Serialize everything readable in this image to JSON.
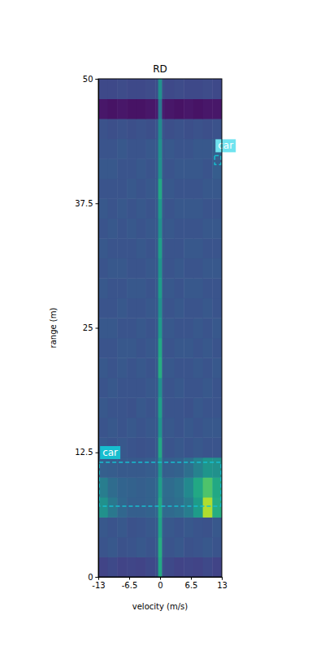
{
  "chart_data": {
    "type": "heatmap",
    "title": "RD",
    "x_label": "velocity (m/s)",
    "y_label": "range (m)",
    "xlim": [
      -13,
      13
    ],
    "ylim": [
      0,
      50
    ],
    "xticks": [
      -13,
      -6.5,
      0,
      6.5,
      13
    ],
    "yticks": [
      0,
      12.5,
      25,
      37.5,
      50
    ],
    "zlim": [
      0,
      1
    ],
    "x_bins": [
      -13,
      -11,
      -9,
      -7,
      -5,
      -3,
      -1,
      -0.4,
      0.4,
      1,
      3,
      5,
      7,
      9,
      11,
      13
    ],
    "y_bins": [
      0,
      2,
      4,
      6,
      8,
      10,
      12,
      14,
      16,
      18,
      20,
      22,
      24,
      26,
      28,
      30,
      32,
      34,
      36,
      38,
      40,
      42,
      44,
      46,
      48,
      50
    ],
    "z": [
      [
        0.2,
        0.22,
        0.2,
        0.21,
        0.2,
        0.22,
        0.24,
        0.6,
        0.24,
        0.22,
        0.2,
        0.21,
        0.2,
        0.22,
        0.2
      ],
      [
        0.26,
        0.27,
        0.25,
        0.26,
        0.27,
        0.26,
        0.28,
        0.62,
        0.28,
        0.26,
        0.27,
        0.25,
        0.26,
        0.27,
        0.26
      ],
      [
        0.27,
        0.26,
        0.27,
        0.25,
        0.26,
        0.27,
        0.28,
        0.58,
        0.29,
        0.27,
        0.26,
        0.27,
        0.26,
        0.25,
        0.27
      ],
      [
        0.5,
        0.4,
        0.33,
        0.3,
        0.3,
        0.31,
        0.33,
        0.6,
        0.35,
        0.34,
        0.36,
        0.42,
        0.55,
        0.88,
        0.62
      ],
      [
        0.42,
        0.35,
        0.32,
        0.31,
        0.3,
        0.31,
        0.33,
        0.56,
        0.36,
        0.35,
        0.38,
        0.47,
        0.6,
        0.72,
        0.6
      ],
      [
        0.3,
        0.29,
        0.28,
        0.28,
        0.28,
        0.29,
        0.3,
        0.52,
        0.3,
        0.3,
        0.31,
        0.36,
        0.44,
        0.52,
        0.5
      ],
      [
        0.27,
        0.26,
        0.27,
        0.26,
        0.25,
        0.26,
        0.28,
        0.6,
        0.28,
        0.26,
        0.27,
        0.26,
        0.27,
        0.26,
        0.26
      ],
      [
        0.26,
        0.27,
        0.26,
        0.27,
        0.26,
        0.27,
        0.27,
        0.52,
        0.27,
        0.27,
        0.26,
        0.27,
        0.26,
        0.27,
        0.27
      ],
      [
        0.27,
        0.26,
        0.26,
        0.25,
        0.27,
        0.26,
        0.28,
        0.56,
        0.28,
        0.26,
        0.26,
        0.25,
        0.27,
        0.26,
        0.26
      ],
      [
        0.26,
        0.27,
        0.26,
        0.26,
        0.26,
        0.27,
        0.27,
        0.5,
        0.27,
        0.26,
        0.27,
        0.26,
        0.26,
        0.27,
        0.26
      ],
      [
        0.27,
        0.26,
        0.27,
        0.26,
        0.27,
        0.26,
        0.28,
        0.62,
        0.28,
        0.27,
        0.26,
        0.26,
        0.27,
        0.26,
        0.27
      ],
      [
        0.26,
        0.26,
        0.27,
        0.27,
        0.26,
        0.27,
        0.28,
        0.6,
        0.27,
        0.26,
        0.27,
        0.27,
        0.26,
        0.27,
        0.26
      ],
      [
        0.27,
        0.27,
        0.26,
        0.26,
        0.27,
        0.26,
        0.27,
        0.54,
        0.28,
        0.27,
        0.26,
        0.26,
        0.27,
        0.26,
        0.27
      ],
      [
        0.26,
        0.26,
        0.27,
        0.26,
        0.26,
        0.27,
        0.27,
        0.5,
        0.27,
        0.26,
        0.27,
        0.26,
        0.26,
        0.27,
        0.26
      ],
      [
        0.27,
        0.26,
        0.26,
        0.27,
        0.27,
        0.26,
        0.28,
        0.55,
        0.28,
        0.27,
        0.26,
        0.27,
        0.27,
        0.26,
        0.26
      ],
      [
        0.26,
        0.27,
        0.27,
        0.26,
        0.26,
        0.27,
        0.27,
        0.52,
        0.27,
        0.26,
        0.27,
        0.26,
        0.26,
        0.27,
        0.27
      ],
      [
        0.27,
        0.26,
        0.26,
        0.26,
        0.27,
        0.26,
        0.28,
        0.56,
        0.28,
        0.26,
        0.26,
        0.27,
        0.27,
        0.26,
        0.26
      ],
      [
        0.26,
        0.27,
        0.26,
        0.27,
        0.26,
        0.27,
        0.27,
        0.5,
        0.27,
        0.27,
        0.26,
        0.26,
        0.26,
        0.27,
        0.27
      ],
      [
        0.27,
        0.26,
        0.27,
        0.26,
        0.27,
        0.26,
        0.28,
        0.54,
        0.28,
        0.26,
        0.27,
        0.27,
        0.27,
        0.26,
        0.26
      ],
      [
        0.26,
        0.26,
        0.26,
        0.27,
        0.26,
        0.27,
        0.28,
        0.6,
        0.28,
        0.27,
        0.26,
        0.26,
        0.26,
        0.27,
        0.27
      ],
      [
        0.27,
        0.27,
        0.26,
        0.26,
        0.27,
        0.26,
        0.27,
        0.5,
        0.27,
        0.26,
        0.27,
        0.27,
        0.27,
        0.26,
        0.29
      ],
      [
        0.26,
        0.26,
        0.27,
        0.26,
        0.26,
        0.27,
        0.27,
        0.5,
        0.27,
        0.27,
        0.26,
        0.26,
        0.27,
        0.27,
        0.3
      ],
      [
        0.25,
        0.24,
        0.25,
        0.24,
        0.25,
        0.24,
        0.26,
        0.48,
        0.26,
        0.24,
        0.25,
        0.24,
        0.25,
        0.24,
        0.25
      ],
      [
        0.06,
        0.05,
        0.06,
        0.05,
        0.05,
        0.06,
        0.08,
        0.4,
        0.08,
        0.06,
        0.05,
        0.06,
        0.05,
        0.06,
        0.06
      ],
      [
        0.22,
        0.22,
        0.23,
        0.22,
        0.22,
        0.23,
        0.24,
        0.5,
        0.24,
        0.22,
        0.23,
        0.22,
        0.22,
        0.23,
        0.22
      ]
    ],
    "annotations": [
      {
        "text": "car",
        "x": [
          11.5,
          12.8
        ],
        "y": [
          41.4,
          42.3
        ]
      },
      {
        "text": "car",
        "x": [
          -12.8,
          12.8
        ],
        "y": [
          7.1,
          11.5
        ]
      }
    ]
  }
}
